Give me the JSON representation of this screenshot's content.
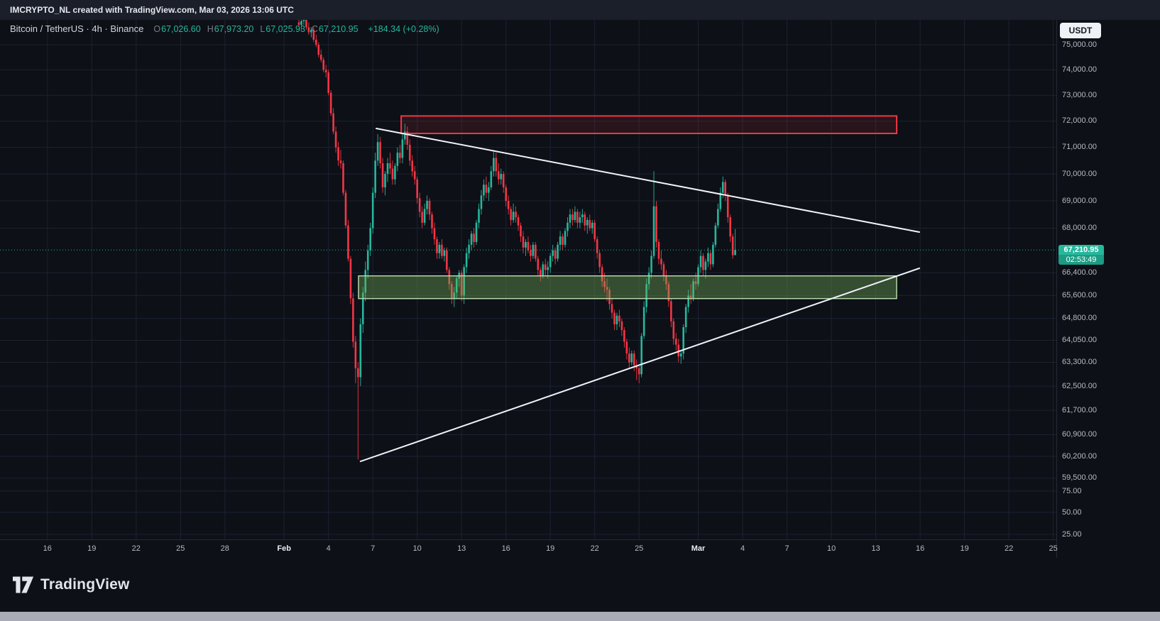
{
  "attribution": "IMCRYPTO_NL created with TradingView.com, Mar 03, 2026 13:06 UTC",
  "currency_button": "USDT",
  "legend": {
    "title": "Bitcoin / TetherUS · 4h · Binance",
    "items": [
      {
        "label": "O",
        "value": "67,026.60"
      },
      {
        "label": "H",
        "value": "67,973.20"
      },
      {
        "label": "L",
        "value": "67,025.93"
      },
      {
        "label": "C",
        "value": "67,210.95"
      }
    ],
    "change": "+184.34 (+0.28%)"
  },
  "last_price": {
    "text": "67,210.95",
    "countdown": "02:53:49",
    "value": 67210.95
  },
  "footer": {
    "brand": "TradingView"
  },
  "axes": {
    "price_labels": [
      {
        "price": 75000,
        "text": "75,000.00"
      },
      {
        "price": 74000,
        "text": "74,000.00"
      },
      {
        "price": 73000,
        "text": "73,000.00"
      },
      {
        "price": 72000,
        "text": "72,000.00"
      },
      {
        "price": 71000,
        "text": "71,000.00"
      },
      {
        "price": 70000,
        "text": "70,000.00"
      },
      {
        "price": 69000,
        "text": "69,000.00"
      },
      {
        "price": 68000,
        "text": "68,000.00"
      },
      {
        "price": 66400,
        "text": "66,400.00"
      },
      {
        "price": 65600,
        "text": "65,600.00"
      },
      {
        "price": 64800,
        "text": "64,800.00"
      },
      {
        "price": 64050,
        "text": "64,050.00"
      },
      {
        "price": 63300,
        "text": "63,300.00"
      },
      {
        "price": 62500,
        "text": "62,500.00"
      },
      {
        "price": 61700,
        "text": "61,700.00"
      },
      {
        "price": 60900,
        "text": "60,900.00"
      },
      {
        "price": 60200,
        "text": "60,200.00"
      },
      {
        "price": 59500,
        "text": "59,500.00"
      }
    ],
    "sub_price_labels": [
      {
        "y": 692,
        "text": "75.00"
      },
      {
        "y": 722,
        "text": "50.00"
      },
      {
        "y": 753,
        "text": "25.00"
      }
    ],
    "time_labels": [
      {
        "text": "16",
        "i": -102,
        "major": false
      },
      {
        "text": "19",
        "i": -84,
        "major": false
      },
      {
        "text": "22",
        "i": -66,
        "major": false
      },
      {
        "text": "25",
        "i": -48,
        "major": false
      },
      {
        "text": "28",
        "i": -30,
        "major": false
      },
      {
        "text": "Feb",
        "i": -6,
        "major": true
      },
      {
        "text": "4",
        "i": 12,
        "major": false
      },
      {
        "text": "7",
        "i": 30,
        "major": false
      },
      {
        "text": "10",
        "i": 48,
        "major": false
      },
      {
        "text": "13",
        "i": 66,
        "major": false
      },
      {
        "text": "16",
        "i": 84,
        "major": false
      },
      {
        "text": "19",
        "i": 102,
        "major": false
      },
      {
        "text": "22",
        "i": 120,
        "major": false
      },
      {
        "text": "25",
        "i": 138,
        "major": false
      },
      {
        "text": "Mar",
        "i": 162,
        "major": true
      },
      {
        "text": "4",
        "i": 180,
        "major": false
      },
      {
        "text": "7",
        "i": 198,
        "major": false
      },
      {
        "text": "10",
        "i": 216,
        "major": false
      },
      {
        "text": "13",
        "i": 234,
        "major": false
      },
      {
        "text": "16",
        "i": 252,
        "major": false
      },
      {
        "text": "19",
        "i": 270,
        "major": false
      },
      {
        "text": "22",
        "i": 288,
        "major": false
      },
      {
        "text": "25",
        "i": 306,
        "major": false
      }
    ]
  },
  "chart_data": {
    "type": "candlestick",
    "symbol": "Bitcoin / TetherUS",
    "exchange": "Binance",
    "interval": "4h",
    "price_scale": "log",
    "ylim": [
      59500,
      76200
    ],
    "visible_time_range": [
      "Jan 16",
      "Mar 25"
    ],
    "candles_time_range": [
      "Feb 2 00:00 UTC",
      "Mar 3 12:00 UTC"
    ],
    "colors": {
      "up": "#26b79c",
      "down": "#f23645"
    },
    "last": {
      "o": 67026.6,
      "h": 67973.2,
      "l": 67025.93,
      "c": 67210.95,
      "change": 184.34,
      "change_pct": 0.28
    },
    "candles": [
      [
        75900,
        76100,
        75700,
        75800
      ],
      [
        75800,
        76000,
        75600,
        75950
      ],
      [
        75950,
        76200,
        75800,
        76000
      ],
      [
        76000,
        76050,
        75600,
        75700
      ],
      [
        75700,
        75900,
        75400,
        75500
      ],
      [
        75500,
        75700,
        75300,
        75600
      ],
      [
        75600,
        75700,
        75100,
        75200
      ],
      [
        75200,
        75400,
        74900,
        75000
      ],
      [
        75000,
        75100,
        74500,
        74600
      ],
      [
        74600,
        74800,
        74300,
        74400
      ],
      [
        74400,
        74500,
        73900,
        74000
      ],
      [
        74000,
        74200,
        73700,
        73900
      ],
      [
        73900,
        74000,
        73000,
        73100
      ],
      [
        73100,
        73200,
        72200,
        72300
      ],
      [
        72300,
        72500,
        71500,
        71600
      ],
      [
        71600,
        71800,
        70800,
        71000
      ],
      [
        71000,
        71200,
        70300,
        70500
      ],
      [
        70500,
        70900,
        70200,
        70400
      ],
      [
        70400,
        70500,
        69200,
        69300
      ],
      [
        69300,
        69400,
        68000,
        68100
      ],
      [
        68100,
        68300,
        66800,
        66900
      ],
      [
        66900,
        67000,
        65300,
        65500
      ],
      [
        65500,
        65700,
        63800,
        64000
      ],
      [
        64000,
        64200,
        62600,
        63100
      ],
      [
        63100,
        63300,
        60100,
        62800
      ],
      [
        62800,
        64800,
        62500,
        64600
      ],
      [
        64600,
        65900,
        64300,
        65700
      ],
      [
        65700,
        66800,
        65400,
        66500
      ],
      [
        66500,
        67400,
        66200,
        67200
      ],
      [
        67200,
        68200,
        67000,
        68000
      ],
      [
        68000,
        69500,
        67800,
        69300
      ],
      [
        69300,
        70800,
        69100,
        70500
      ],
      [
        70500,
        71500,
        70300,
        71200
      ],
      [
        71200,
        71400,
        70200,
        70400
      ],
      [
        70400,
        70600,
        69300,
        69500
      ],
      [
        69500,
        70100,
        69200,
        70000
      ],
      [
        70000,
        70600,
        69700,
        70400
      ],
      [
        70400,
        70800,
        70000,
        70200
      ],
      [
        70200,
        70500,
        69600,
        69800
      ],
      [
        69800,
        70400,
        69600,
        70300
      ],
      [
        70300,
        71000,
        70100,
        70800
      ],
      [
        70800,
        71100,
        70400,
        70600
      ],
      [
        70600,
        71500,
        70400,
        71300
      ],
      [
        71300,
        71900,
        71100,
        71600
      ],
      [
        71600,
        71800,
        70900,
        71100
      ],
      [
        71100,
        71300,
        70300,
        70500
      ],
      [
        70500,
        70700,
        69900,
        70100
      ],
      [
        70100,
        70300,
        69600,
        69800
      ],
      [
        69800,
        69900,
        68900,
        69100
      ],
      [
        69100,
        69300,
        68400,
        68600
      ],
      [
        68600,
        68800,
        68000,
        68200
      ],
      [
        68200,
        68900,
        68100,
        68700
      ],
      [
        68700,
        69200,
        68500,
        69000
      ],
      [
        69000,
        69100,
        68300,
        68500
      ],
      [
        68500,
        68600,
        67800,
        68000
      ],
      [
        68000,
        68200,
        67400,
        67600
      ],
      [
        67600,
        67700,
        66900,
        67100
      ],
      [
        67100,
        67500,
        66900,
        67400
      ],
      [
        67400,
        67600,
        66900,
        67000
      ],
      [
        67000,
        67300,
        66800,
        67200
      ],
      [
        67200,
        67300,
        66400,
        66500
      ],
      [
        66500,
        66600,
        65800,
        66000
      ],
      [
        66000,
        66100,
        65300,
        65500
      ],
      [
        65500,
        65900,
        65200,
        65700
      ],
      [
        65700,
        66300,
        65500,
        66200
      ],
      [
        66200,
        66500,
        65900,
        66400
      ],
      [
        66400,
        66500,
        65400,
        65600
      ],
      [
        65600,
        66700,
        65300,
        66600
      ],
      [
        66600,
        67300,
        66400,
        67100
      ],
      [
        67100,
        67600,
        66900,
        67400
      ],
      [
        67400,
        67900,
        67200,
        67800
      ],
      [
        67800,
        68000,
        67300,
        67500
      ],
      [
        67500,
        68300,
        67400,
        68200
      ],
      [
        68200,
        68900,
        68000,
        68700
      ],
      [
        68700,
        69400,
        68500,
        69200
      ],
      [
        69200,
        69800,
        69000,
        69600
      ],
      [
        69600,
        69900,
        69100,
        69300
      ],
      [
        69300,
        69700,
        69000,
        69500
      ],
      [
        69500,
        70300,
        69400,
        70100
      ],
      [
        70100,
        70900,
        69900,
        70600
      ],
      [
        70600,
        70800,
        69900,
        70100
      ],
      [
        70100,
        70400,
        69600,
        69800
      ],
      [
        69800,
        70200,
        69600,
        70000
      ],
      [
        70000,
        70100,
        69300,
        69500
      ],
      [
        69500,
        69600,
        68800,
        69000
      ],
      [
        69000,
        69200,
        68500,
        68700
      ],
      [
        68700,
        68800,
        68100,
        68300
      ],
      [
        68300,
        68900,
        68200,
        68600
      ],
      [
        68600,
        68800,
        68200,
        68400
      ],
      [
        68400,
        68500,
        67900,
        68100
      ],
      [
        68100,
        68200,
        67500,
        67700
      ],
      [
        67700,
        67900,
        67100,
        67300
      ],
      [
        67300,
        67600,
        67000,
        67500
      ],
      [
        67500,
        67700,
        67100,
        67200
      ],
      [
        67200,
        67400,
        66800,
        67000
      ],
      [
        67000,
        67500,
        66900,
        67400
      ],
      [
        67400,
        67500,
        66800,
        66900
      ],
      [
        66900,
        67000,
        66300,
        66500
      ],
      [
        66500,
        66600,
        66100,
        66300
      ],
      [
        66300,
        66800,
        66200,
        66700
      ],
      [
        66700,
        66900,
        66300,
        66500
      ],
      [
        66500,
        66800,
        66200,
        66600
      ],
      [
        66600,
        67100,
        66400,
        67000
      ],
      [
        67000,
        67400,
        66800,
        67200
      ],
      [
        67200,
        67300,
        66700,
        66900
      ],
      [
        66900,
        67500,
        66800,
        67400
      ],
      [
        67400,
        67900,
        67200,
        67700
      ],
      [
        67700,
        67800,
        67200,
        67400
      ],
      [
        67400,
        68000,
        67300,
        67900
      ],
      [
        67900,
        68400,
        67700,
        68200
      ],
      [
        68200,
        68700,
        68000,
        68500
      ],
      [
        68500,
        68700,
        68100,
        68300
      ],
      [
        68300,
        68800,
        68200,
        68600
      ],
      [
        68600,
        68700,
        68000,
        68200
      ],
      [
        68200,
        68600,
        68000,
        68400
      ],
      [
        68400,
        68700,
        68200,
        68500
      ],
      [
        68500,
        68600,
        67900,
        68100
      ],
      [
        68100,
        68400,
        67800,
        68300
      ],
      [
        68300,
        68500,
        67900,
        68000
      ],
      [
        68000,
        68300,
        67800,
        68200
      ],
      [
        68200,
        68300,
        67500,
        67600
      ],
      [
        67600,
        67700,
        66900,
        67100
      ],
      [
        67100,
        67200,
        66400,
        66600
      ],
      [
        66600,
        66700,
        65900,
        66100
      ],
      [
        66100,
        66400,
        65700,
        65900
      ],
      [
        65900,
        66200,
        65400,
        65800
      ],
      [
        65800,
        65900,
        65100,
        65300
      ],
      [
        65300,
        65500,
        64800,
        65000
      ],
      [
        65000,
        65100,
        64400,
        64600
      ],
      [
        64600,
        65000,
        64400,
        64900
      ],
      [
        64900,
        65100,
        64500,
        64700
      ],
      [
        64700,
        64800,
        64200,
        64400
      ],
      [
        64400,
        64500,
        63800,
        64000
      ],
      [
        64000,
        64100,
        63400,
        63600
      ],
      [
        63600,
        63800,
        63100,
        63300
      ],
      [
        63300,
        63700,
        63200,
        63600
      ],
      [
        63600,
        63700,
        63000,
        63200
      ],
      [
        63200,
        63400,
        62700,
        63100
      ],
      [
        63100,
        63200,
        62600,
        62900
      ],
      [
        62900,
        64300,
        62800,
        64200
      ],
      [
        64200,
        65400,
        64100,
        65200
      ],
      [
        65200,
        66200,
        65000,
        66000
      ],
      [
        66000,
        66600,
        65800,
        66400
      ],
      [
        66400,
        67200,
        66200,
        67000
      ],
      [
        67000,
        70100,
        66900,
        68800
      ],
      [
        68800,
        69000,
        67300,
        67500
      ],
      [
        67500,
        67600,
        66700,
        66900
      ],
      [
        66900,
        67200,
        66500,
        66700
      ],
      [
        66700,
        66800,
        66100,
        66300
      ],
      [
        66300,
        66500,
        65800,
        66000
      ],
      [
        66000,
        66100,
        65200,
        65400
      ],
      [
        65400,
        65500,
        64500,
        64700
      ],
      [
        64700,
        64800,
        63900,
        64100
      ],
      [
        64100,
        64300,
        63700,
        63900
      ],
      [
        63900,
        64100,
        63300,
        63500
      ],
      [
        63500,
        63700,
        63250,
        63600
      ],
      [
        63600,
        64600,
        63400,
        64500
      ],
      [
        64500,
        65300,
        64300,
        65200
      ],
      [
        65200,
        65800,
        65000,
        65600
      ],
      [
        65600,
        66000,
        65300,
        65500
      ],
      [
        65500,
        66200,
        65400,
        66100
      ],
      [
        66100,
        66400,
        65800,
        66000
      ],
      [
        66000,
        66700,
        65900,
        66600
      ],
      [
        66600,
        67200,
        66400,
        67000
      ],
      [
        67000,
        67100,
        66300,
        66500
      ],
      [
        66500,
        66900,
        66200,
        66800
      ],
      [
        66800,
        67300,
        66600,
        67100
      ],
      [
        67100,
        67200,
        66500,
        66700
      ],
      [
        66700,
        67500,
        66600,
        67400
      ],
      [
        67400,
        68200,
        67300,
        68100
      ],
      [
        68100,
        68900,
        68000,
        68700
      ],
      [
        68700,
        69500,
        68600,
        69300
      ],
      [
        69300,
        69900,
        69100,
        69700
      ],
      [
        69700,
        69800,
        69000,
        69200
      ],
      [
        69200,
        69300,
        68200,
        68400
      ],
      [
        68400,
        68500,
        67500,
        67700
      ],
      [
        67700,
        67800,
        66900,
        67026.6
      ],
      [
        67026.6,
        67973.2,
        67025.93,
        67210.95
      ]
    ],
    "annotations": {
      "resistance_zone": {
        "type": "box",
        "i1": 41.5,
        "i2": 242.5,
        "price_top": 72200,
        "price_bottom": 71530,
        "color": "#f23645",
        "fill": "rgba(242,54,69,0.12)"
      },
      "support_zone": {
        "type": "box",
        "i1": 24.2,
        "i2": 242.5,
        "price_top": 66290,
        "price_bottom": 65490,
        "color": "#b6d7a8",
        "fill": "rgba(118,178,90,0.38)"
      },
      "descending_trendline": {
        "type": "line",
        "i1": 31.4,
        "price1": 71720,
        "i2": 251.7,
        "price2": 67860,
        "color": "#f0f3fa"
      },
      "ascending_trendline": {
        "type": "line",
        "i1": 25.0,
        "price1": 60040,
        "i2": 251.7,
        "price2": 66560,
        "color": "#f0f3fa"
      }
    }
  }
}
